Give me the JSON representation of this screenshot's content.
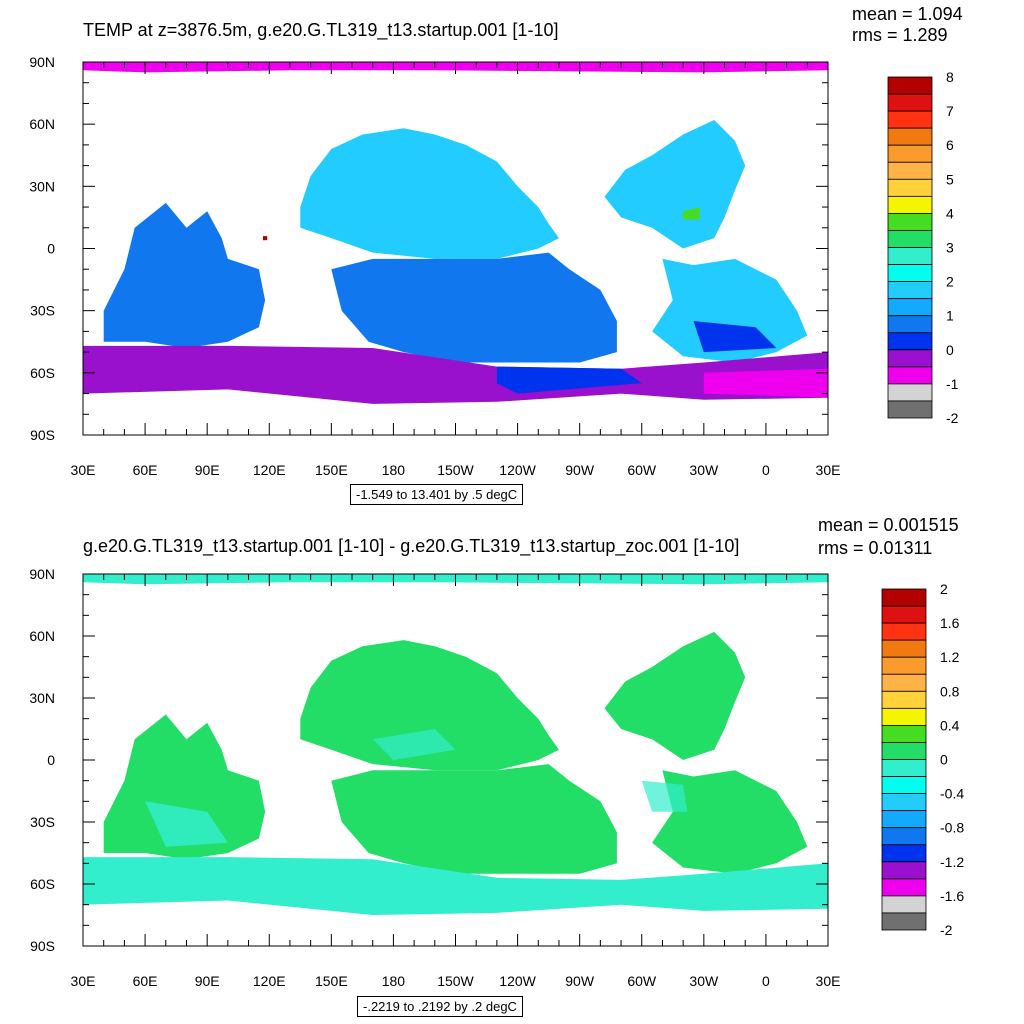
{
  "chart_data": [
    {
      "type": "heatmap",
      "title": "TEMP at z=3876.5m, g.e20.G.TL319_t13.startup.001 [1-10]",
      "stats": {
        "mean": "mean = 1.094",
        "rms": "rms = 1.289"
      },
      "range_note": "-1.549 to 13.401 by .5 degC",
      "y_ticks": [
        "90N",
        "60N",
        "30N",
        "0",
        "30S",
        "60S",
        "90S"
      ],
      "x_ticks": [
        "30E",
        "60E",
        "90E",
        "120E",
        "150E",
        "180",
        "150W",
        "120W",
        "90W",
        "60W",
        "30W",
        "0",
        "30E"
      ],
      "xlim": [
        30,
        390
      ],
      "ylim": [
        -90,
        90
      ],
      "colorbar_labels": [
        "8",
        "7",
        "6",
        "5",
        "4",
        "3",
        "2",
        "1",
        "0",
        "-1",
        "-2"
      ],
      "colorbar_colors": [
        "#b30000",
        "#dd1111",
        "#ff3311",
        "#f07a10",
        "#fb9b2c",
        "#ffb347",
        "#ffd23a",
        "#f5f500",
        "#44dd22",
        "#22dd66",
        "#33eecc",
        "#00ffee",
        "#22ccff",
        "#11aaff",
        "#1177ee",
        "#0033ee",
        "#9911cc",
        "#ee00ee",
        "#d3d3d3",
        "#707070"
      ]
    },
    {
      "type": "heatmap",
      "title": "g.e20.G.TL319_t13.startup.001 [1-10] - g.e20.G.TL319_t13.startup_zoc.001 [1-10]",
      "stats": {
        "mean": "mean = 0.001515",
        "rms": "rms = 0.01311"
      },
      "range_note": "-.2219 to .2192 by .2 degC",
      "y_ticks": [
        "90N",
        "60N",
        "30N",
        "0",
        "30S",
        "60S",
        "90S"
      ],
      "x_ticks": [
        "30E",
        "60E",
        "90E",
        "120E",
        "150E",
        "180",
        "150W",
        "120W",
        "90W",
        "60W",
        "30W",
        "0",
        "30E"
      ],
      "xlim": [
        30,
        390
      ],
      "ylim": [
        -90,
        90
      ],
      "colorbar_labels": [
        "2",
        "1.6",
        "1.2",
        "0.8",
        "0.4",
        "0",
        "-0.4",
        "-0.8",
        "-1.2",
        "-1.6",
        "-2"
      ],
      "colorbar_colors": [
        "#b30000",
        "#dd1111",
        "#ff3311",
        "#f07a10",
        "#fb9b2c",
        "#ffb347",
        "#ffd23a",
        "#f5f500",
        "#44dd22",
        "#22dd66",
        "#33eecc",
        "#00ffee",
        "#22ccff",
        "#11aaff",
        "#1177ee",
        "#0033ee",
        "#9911cc",
        "#ee00ee",
        "#d3d3d3",
        "#707070"
      ]
    }
  ],
  "field_colors": {
    "top": {
      "deep_blue": "#0033ee",
      "mid_blue": "#1177ee",
      "light_blue": "#22ccff",
      "cyan": "#33eecc",
      "purple": "#9911cc",
      "magenta": "#ee00ee",
      "green": "#44dd22",
      "red": "#b30000"
    },
    "bottom": {
      "green": "#22dd66",
      "cyan": "#33eecc",
      "light_green": "#44dd22"
    }
  }
}
